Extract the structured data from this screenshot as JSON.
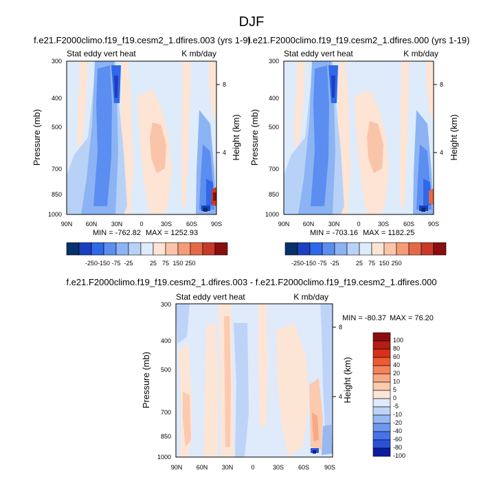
{
  "page_title": "DJF",
  "chart_data": [
    {
      "type": "heatmap",
      "title": "f.e21.F2000climo.f19_f19.cesm2_1.dfires.003 (yrs 1-9)",
      "left_label": "Stat eddy vert heat",
      "right_label": "K mb/day",
      "ylabel": "Pressure (mb)",
      "y2label": "Height (km)",
      "xticks": [
        "90N",
        "60N",
        "30N",
        "0",
        "30S",
        "60S",
        "90S"
      ],
      "yticks": [
        "300",
        "400",
        "500",
        "700",
        "850",
        "1000"
      ],
      "y2ticks": [
        "8",
        "4"
      ],
      "min_label": "MIN = -762.82",
      "max_label": "MAX = 1252.93",
      "colorbar_labels": [
        "-250",
        "-150",
        "-75",
        "-25",
        "25",
        "75",
        "150",
        "250"
      ],
      "min_value": -762.82,
      "max_value": 1252.93
    },
    {
      "type": "heatmap",
      "title": "f.e21.F2000climo.f19_f19.cesm2_1.dfires.000 (yrs 1-19)",
      "left_label": "Stat eddy vert heat",
      "right_label": "K mb/day",
      "ylabel": "Pressure (mb)",
      "y2label": "Height (km)",
      "xticks": [
        "90N",
        "60N",
        "30N",
        "0",
        "30S",
        "60S",
        "90S"
      ],
      "yticks": [
        "300",
        "400",
        "500",
        "700",
        "850",
        "1000"
      ],
      "y2ticks": [
        "8",
        "4"
      ],
      "min_label": "MIN = -703.16",
      "max_label": "MAX = 1182.25",
      "colorbar_labels": [
        "-250",
        "-150",
        "-75",
        "-25",
        "25",
        "75",
        "150",
        "250"
      ],
      "min_value": -703.16,
      "max_value": 1182.25
    },
    {
      "type": "heatmap",
      "title": "f.e21.F2000climo.f19_f19.cesm2_1.dfires.003 - f.e21.F2000climo.f19_f19.cesm2_1.dfires.000",
      "left_label": "Stat eddy vert heat",
      "right_label": "K mb/day",
      "ylabel": "Pressure (mb)",
      "y2label": "Height (km)",
      "xticks": [
        "90N",
        "60N",
        "30N",
        "0",
        "30S",
        "60S",
        "90S"
      ],
      "yticks": [
        "300",
        "400",
        "500",
        "700",
        "850",
        "1000"
      ],
      "y2ticks": [
        "8",
        "4"
      ],
      "min_label": "MIN = -80.37",
      "max_label": "MAX =  76.20",
      "colorbar_labels": [
        "100",
        "80",
        "60",
        "40",
        "20",
        "10",
        "5",
        "0",
        "-5",
        "-10",
        "-20",
        "-40",
        "-60",
        "-80",
        "-100"
      ],
      "min_value": -80.37,
      "max_value": 76.2
    }
  ],
  "colors": {
    "div_top": [
      "#08306b",
      "#1c3fc0",
      "#2f68e8",
      "#5b8ef0",
      "#8cb3f3",
      "#b8d2f7",
      "#deebfb",
      "#fde4d4",
      "#fac4a8",
      "#f59b77",
      "#e46a47",
      "#c8392a",
      "#8b0e0e"
    ],
    "div_diff": [
      "#8b0e0e",
      "#b51d14",
      "#d83019",
      "#ee5a33",
      "#f6835c",
      "#f9a985",
      "#fbcaaf",
      "#fde5d6",
      "#dfeafb",
      "#bdd3f7",
      "#98b8f2",
      "#6e98ed",
      "#4674e8",
      "#2b52d6",
      "#0c1c9e"
    ]
  }
}
